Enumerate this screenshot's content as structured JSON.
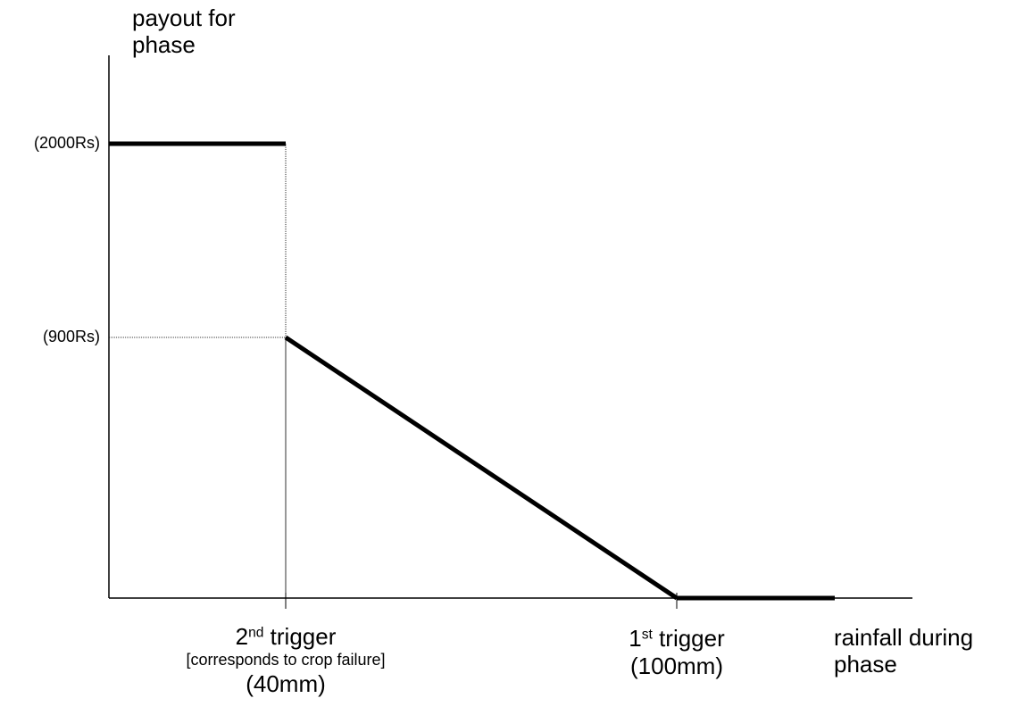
{
  "y_axis_label": [
    "payout for",
    "phase"
  ],
  "x_axis_label": [
    "rainfall during",
    "phase"
  ],
  "y_ticks": [
    "(2000Rs)",
    "(900Rs)"
  ],
  "second_trigger": {
    "num": "2",
    "suffix": "nd",
    "word": " trigger",
    "note": "[corresponds to crop failure]",
    "value": "(40mm)"
  },
  "first_trigger": {
    "num": "1",
    "suffix": "st",
    "word": " trigger",
    "value": "(100mm)"
  },
  "chart_data": {
    "type": "line",
    "series": [
      {
        "points": [
          {
            "rainfall": 0,
            "payout": 2000
          },
          {
            "rainfall": 40,
            "payout": 2000
          },
          {
            "rainfall": 40,
            "payout": 900
          },
          {
            "rainfall": 100,
            "payout": 0
          },
          {
            "rainfall": 140,
            "payout": 0
          }
        ]
      }
    ],
    "reference_points": [
      {
        "label": "2nd trigger",
        "rainfall": 40,
        "payout": 2000
      },
      {
        "label": "2nd trigger",
        "rainfall": 40,
        "payout": 900
      },
      {
        "label": "1st trigger",
        "rainfall": 100,
        "payout": 0
      }
    ]
  }
}
